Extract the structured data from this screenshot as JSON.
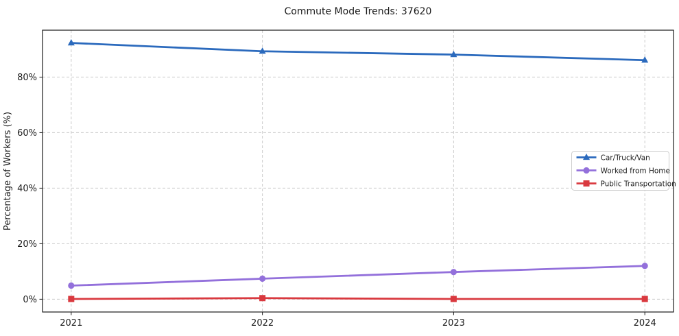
{
  "chart_data": {
    "type": "line",
    "title": "Commute Mode Trends: 37620",
    "xlabel": "",
    "ylabel": "Percentage of Workers (%)",
    "categories": [
      "2021",
      "2022",
      "2023",
      "2024"
    ],
    "x": [
      2021,
      2022,
      2023,
      2024
    ],
    "series": [
      {
        "name": "Car/Truck/Van",
        "color": "#2b6abd",
        "marker": "triangle",
        "values": [
          92.3,
          89.3,
          88.1,
          86.1
        ]
      },
      {
        "name": "Worked from Home",
        "color": "#9370db",
        "marker": "circle",
        "values": [
          4.9,
          7.4,
          9.8,
          12.0
        ]
      },
      {
        "name": "Public Transportation",
        "color": "#d9393f",
        "marker": "square",
        "values": [
          0.1,
          0.4,
          0.1,
          0.1
        ]
      }
    ],
    "xlim": [
      2020.85,
      2024.15
    ],
    "ylim": [
      -4.6,
      96.9
    ],
    "yticks": [
      0,
      20,
      40,
      60,
      80
    ],
    "ytick_labels": [
      "0%",
      "20%",
      "40%",
      "60%",
      "80%"
    ],
    "grid": true,
    "grid_style": "dashed",
    "legend": {
      "position": "center-right",
      "border_color": "#cccccc",
      "background": "#ffffff"
    },
    "colors": {
      "spine": "#1a1a1a",
      "gridline": "#cccccc",
      "text": "#1a1a1a"
    }
  }
}
